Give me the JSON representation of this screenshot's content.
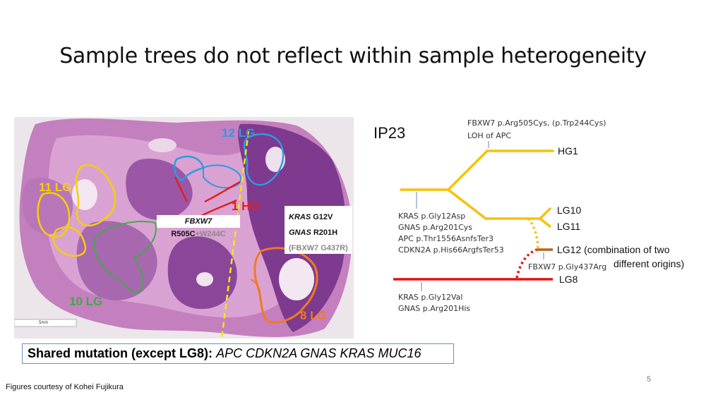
{
  "slide": {
    "title": "Sample trees do not reflect within sample heterogeneity",
    "page_number": "5",
    "credit": "Figures courtesy of Kohei Fujikura"
  },
  "histology": {
    "regions": {
      "lg11": "11 LG",
      "lg10": "10 LG",
      "hg1": "1 HG",
      "lg12": "12 LG",
      "lg8": "8 LG"
    },
    "colors": {
      "lg11": "#f5d000",
      "lg10": "#45a84a",
      "hg1": "#e02020",
      "lg12": "#2f9ae0",
      "lg8": "#f07a20",
      "divider": "#f5e800"
    },
    "mutation_box_left": {
      "gene": "FBXW7",
      "variant": "R505C",
      "extra": "+W244C"
    },
    "mutation_box_right": {
      "line1_gene": "KRAS",
      "line1_variant": "G12V",
      "line2_gene": "GNAS",
      "line2_variant": "R201H",
      "line3": "(FBXW7 G437R)"
    },
    "scale_bar_label": "5mm"
  },
  "shared": {
    "label": "Shared mutation (except LG8):",
    "genes": "APC CDKN2A GNAS KRAS MUC16"
  },
  "tree": {
    "sample": "IP23",
    "top_annotation": [
      "FBXW7 p.Arg505Cys, (p.Trp244Cys)",
      "LOH of APC"
    ],
    "trunk_annotation": [
      "KRAS p.Gly12Asp",
      "GNAS p.Arg201Cys",
      "APC p.Thr1556AsnfsTer3",
      "CDKN2A p.His66ArgfsTer53"
    ],
    "lg12_annotation": "FBXW7 p.Gly437Arg",
    "lg8_annotation": [
      "KRAS p.Gly12Val",
      "GNAS p.Arg201His"
    ],
    "leaves": {
      "hg1": "HG1",
      "lg10": "LG10",
      "lg11": "LG11",
      "lg12": "LG12 (combination of two",
      "lg12_line2": "different origins)",
      "lg8": "LG8"
    },
    "colors": {
      "main": "#f5c20a",
      "lg8": "#e81010",
      "lg12": "#b5651d"
    }
  }
}
